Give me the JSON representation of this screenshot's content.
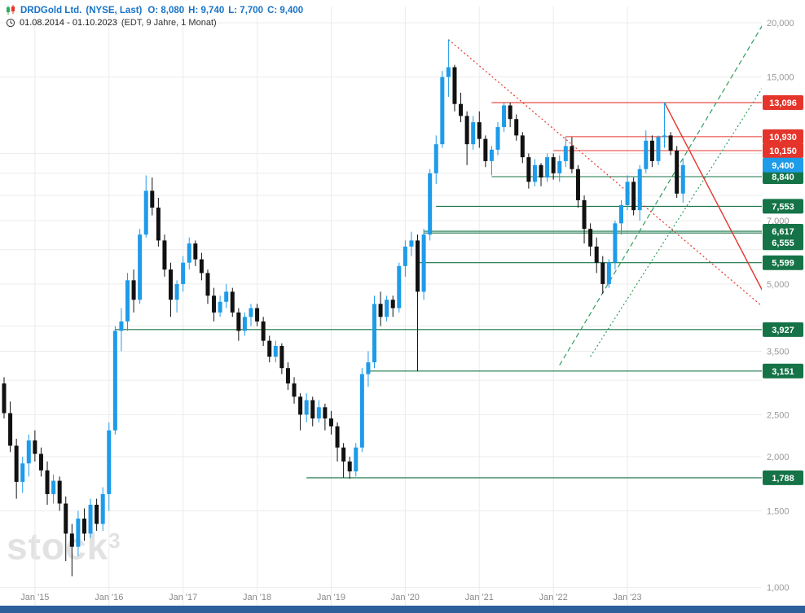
{
  "header": {
    "title": "DRDGold Ltd.",
    "subtitle": "(NYSE, Last)",
    "open": "O: 8,080",
    "high": "H: 9,740",
    "low": "L: 7,700",
    "close": "C: 9,400",
    "period": "01.08.2014 - 01.10.2023",
    "period_info": "(EDT, 9 Jahre, 1 Monat)"
  },
  "watermark": {
    "text": "stock",
    "sup": "3"
  },
  "colors": {
    "up": "#1e9be9",
    "down": "#111111",
    "green": "#157347",
    "red": "#e5352b",
    "blue": "#1e9be9",
    "trend_green": "#2f9e5f",
    "trend_red": "#e5352b",
    "grid": "#ececec",
    "axis_text": "#999999",
    "x_text": "#8a8a8a",
    "header_blue": "#1873c8",
    "bottom_bar": "#2d5f9b",
    "watermark": "#e2e2e2"
  },
  "chart_data": {
    "type": "candlestick",
    "title": "DRDGold Ltd. (NYSE, Last)",
    "interval": "1 Monat",
    "scale": "log",
    "start_month": "2014-08",
    "end_month": "2023-10",
    "ylim": [
      1000,
      21000
    ],
    "last": {
      "open": 8080,
      "high": 9740,
      "low": 7700,
      "close": 9400
    },
    "y_axis": {
      "grid_values": [
        1000,
        1500,
        2000,
        2500,
        3000,
        3500,
        4000,
        5000,
        6000,
        7000,
        8000,
        9000,
        10000,
        15000,
        20000
      ],
      "labels": [
        {
          "value": 20000,
          "text": "20,000"
        },
        {
          "value": 15000,
          "text": "15,000"
        },
        {
          "value": 7000,
          "text": "7,000"
        },
        {
          "value": 5000,
          "text": "5,000"
        },
        {
          "value": 3500,
          "text": "3,500"
        },
        {
          "value": 2500,
          "text": "2,500"
        },
        {
          "value": 2000,
          "text": "2,000"
        },
        {
          "value": 1500,
          "text": "1,500"
        },
        {
          "value": 1000,
          "text": "1,000"
        }
      ]
    },
    "x_axis": {
      "labels": [
        {
          "index": 5,
          "text": "Jan '15"
        },
        {
          "index": 17,
          "text": "Jan '16"
        },
        {
          "index": 29,
          "text": "Jan '17"
        },
        {
          "index": 41,
          "text": "Jan '18"
        },
        {
          "index": 53,
          "text": "Jan '19"
        },
        {
          "index": 65,
          "text": "Jan '20"
        },
        {
          "index": 77,
          "text": "Jan '21"
        },
        {
          "index": 89,
          "text": "Jan '22"
        },
        {
          "index": 101,
          "text": "Jan '23"
        }
      ]
    },
    "levels": [
      {
        "value": 13096,
        "label": "13,096",
        "color": "red",
        "start": 79
      },
      {
        "value": 10930,
        "label": "10,930",
        "color": "red",
        "start": 91
      },
      {
        "value": 10150,
        "label": "10,150",
        "color": "red",
        "start": 89
      },
      {
        "value": 9400,
        "label": "9,400",
        "color": "blue",
        "line": false
      },
      {
        "value": 8840,
        "label": "8,840",
        "color": "green",
        "start": 79
      },
      {
        "value": 7553,
        "label": "7,553",
        "color": "green",
        "start": 70
      },
      {
        "value": 6617,
        "label": "6,617",
        "color": "green",
        "start": 68
      },
      {
        "value": 6555,
        "label": "6,555",
        "color": "green",
        "start": 68,
        "label_dy": 12,
        "behind": true
      },
      {
        "value": 5599,
        "label": "5,599",
        "color": "green",
        "start": 67
      },
      {
        "value": 3927,
        "label": "3,927",
        "color": "green",
        "start": 18
      },
      {
        "value": 3151,
        "label": "3,151",
        "color": "green",
        "start": 59
      },
      {
        "value": 1788,
        "label": "1,788",
        "color": "green",
        "start": 49
      }
    ],
    "trendlines": [
      {
        "name": "downtrend-2020",
        "color": "red",
        "style": "dotted",
        "from": [
          72,
          18300
        ],
        "to": [
          124,
          4300
        ]
      },
      {
        "name": "downtrend-2023",
        "color": "red",
        "style": "solid",
        "from": [
          107,
          13096
        ],
        "to": [
          124,
          4500
        ]
      },
      {
        "name": "uptrend-main",
        "color": "green",
        "style": "dashed",
        "from": [
          90,
          3250
        ],
        "to": [
          124,
          21000
        ]
      },
      {
        "name": "uptrend-inner",
        "color": "green",
        "style": "dotted",
        "from": [
          95,
          3400
        ],
        "to": [
          124,
          15000
        ]
      }
    ],
    "candles": [
      [
        2950,
        3050,
        2450,
        2520
      ],
      [
        2520,
        2680,
        2050,
        2120
      ],
      [
        2120,
        2200,
        1600,
        1750
      ],
      [
        1750,
        2000,
        1650,
        1930
      ],
      [
        1930,
        2250,
        1800,
        2180
      ],
      [
        2180,
        2300,
        1950,
        2030
      ],
      [
        2030,
        2100,
        1800,
        1860
      ],
      [
        1860,
        1950,
        1550,
        1640
      ],
      [
        1640,
        1820,
        1560,
        1760
      ],
      [
        1760,
        1800,
        1500,
        1560
      ],
      [
        1560,
        1620,
        1150,
        1330
      ],
      [
        1330,
        1400,
        1060,
        1240
      ],
      [
        1240,
        1500,
        1180,
        1440
      ],
      [
        1440,
        1520,
        1280,
        1330
      ],
      [
        1330,
        1600,
        1300,
        1550
      ],
      [
        1550,
        1600,
        1350,
        1400
      ],
      [
        1400,
        1700,
        1350,
        1640
      ],
      [
        1640,
        2400,
        1500,
        2300
      ],
      [
        2300,
        4000,
        2250,
        3900
      ],
      [
        3900,
        4400,
        3500,
        4100
      ],
      [
        4100,
        5300,
        3900,
        5100
      ],
      [
        5100,
        5400,
        4300,
        4600
      ],
      [
        4600,
        6700,
        4500,
        6500
      ],
      [
        6500,
        8900,
        6400,
        8200
      ],
      [
        8200,
        8800,
        7200,
        7500
      ],
      [
        7500,
        7900,
        6100,
        6300
      ],
      [
        6300,
        6500,
        5200,
        5400
      ],
      [
        5400,
        5600,
        4200,
        4600
      ],
      [
        4600,
        5100,
        4300,
        5000
      ],
      [
        5000,
        5800,
        4800,
        5600
      ],
      [
        5600,
        6400,
        5400,
        6200
      ],
      [
        6200,
        6300,
        5500,
        5700
      ],
      [
        5700,
        5900,
        5100,
        5300
      ],
      [
        5300,
        5400,
        4500,
        4700
      ],
      [
        4700,
        4900,
        4100,
        4300
      ],
      [
        4300,
        4700,
        4200,
        4550
      ],
      [
        4550,
        5000,
        4400,
        4800
      ],
      [
        4800,
        4900,
        4200,
        4300
      ],
      [
        4300,
        4400,
        3700,
        3900
      ],
      [
        3900,
        4300,
        3800,
        4200
      ],
      [
        4200,
        4500,
        4000,
        4400
      ],
      [
        4400,
        4500,
        4000,
        4100
      ],
      [
        4100,
        4200,
        3600,
        3700
      ],
      [
        3700,
        3800,
        3300,
        3400
      ],
      [
        3400,
        3700,
        3300,
        3600
      ],
      [
        3600,
        3650,
        3100,
        3200
      ],
      [
        3200,
        3300,
        2850,
        2950
      ],
      [
        2950,
        3050,
        2650,
        2750
      ],
      [
        2750,
        2800,
        2300,
        2500
      ],
      [
        2500,
        2800,
        2400,
        2700
      ],
      [
        2700,
        2750,
        2350,
        2450
      ],
      [
        2450,
        2700,
        2400,
        2600
      ],
      [
        2600,
        2650,
        2300,
        2450
      ],
      [
        2450,
        2550,
        2250,
        2350
      ],
      [
        2350,
        2400,
        1950,
        2100
      ],
      [
        2100,
        2150,
        1790,
        1950
      ],
      [
        1950,
        2000,
        1780,
        1850
      ],
      [
        1850,
        2150,
        1800,
        2100
      ],
      [
        2100,
        3200,
        2050,
        3100
      ],
      [
        3100,
        3500,
        2900,
        3300
      ],
      [
        3300,
        4700,
        3200,
        4500
      ],
      [
        4500,
        4800,
        4000,
        4200
      ],
      [
        4200,
        4700,
        4100,
        4600
      ],
      [
        4600,
        4700,
        4200,
        4400
      ],
      [
        4400,
        5600,
        4300,
        5500
      ],
      [
        5500,
        6300,
        5200,
        6100
      ],
      [
        6100,
        6600,
        5800,
        6300
      ],
      [
        6300,
        6500,
        3150,
        4800
      ],
      [
        4800,
        6700,
        4600,
        6500
      ],
      [
        6500,
        9200,
        6300,
        9000
      ],
      [
        9000,
        11000,
        8500,
        10500
      ],
      [
        10500,
        15500,
        10300,
        15000
      ],
      [
        15000,
        18300,
        13500,
        15800
      ],
      [
        15800,
        16000,
        12500,
        13000
      ],
      [
        13000,
        13800,
        11800,
        12200
      ],
      [
        12200,
        12500,
        9400,
        10500
      ],
      [
        10500,
        12200,
        10200,
        11800
      ],
      [
        11800,
        12500,
        10300,
        10800
      ],
      [
        10800,
        11000,
        9300,
        9600
      ],
      [
        9600,
        10400,
        8900,
        10200
      ],
      [
        10200,
        11800,
        9900,
        11500
      ],
      [
        11500,
        13100,
        11200,
        12900
      ],
      [
        12900,
        13096,
        11500,
        12000
      ],
      [
        12000,
        12300,
        10700,
        11000
      ],
      [
        11000,
        11200,
        9500,
        9800
      ],
      [
        9800,
        10000,
        8300,
        8600
      ],
      [
        8600,
        9700,
        8400,
        9400
      ],
      [
        9400,
        9500,
        8400,
        8800
      ],
      [
        8800,
        10000,
        8600,
        9800
      ],
      [
        9800,
        10000,
        8700,
        9000
      ],
      [
        9000,
        9900,
        8600,
        9600
      ],
      [
        9600,
        10930,
        9300,
        10400
      ],
      [
        10400,
        10900,
        9000,
        9200
      ],
      [
        9200,
        9400,
        7500,
        7800
      ],
      [
        7800,
        8000,
        6200,
        6700
      ],
      [
        6700,
        6900,
        5800,
        6100
      ],
      [
        6100,
        6400,
        5300,
        5600
      ],
      [
        5600,
        5800,
        4750,
        5000
      ],
      [
        5000,
        5700,
        4900,
        5600
      ],
      [
        5600,
        7000,
        5400,
        6900
      ],
      [
        6900,
        7800,
        6500,
        7600
      ],
      [
        7600,
        8900,
        7400,
        8600
      ],
      [
        8600,
        8800,
        7200,
        7400
      ],
      [
        7400,
        9400,
        7000,
        9200
      ],
      [
        9200,
        11300,
        9000,
        10700
      ],
      [
        10700,
        11000,
        9300,
        9600
      ],
      [
        9600,
        11000,
        9400,
        10900
      ],
      [
        10900,
        13096,
        10300,
        11000
      ],
      [
        11000,
        11200,
        9900,
        10150
      ],
      [
        10150,
        10400,
        7900,
        8080
      ],
      [
        8080,
        9740,
        7700,
        9400
      ]
    ]
  }
}
